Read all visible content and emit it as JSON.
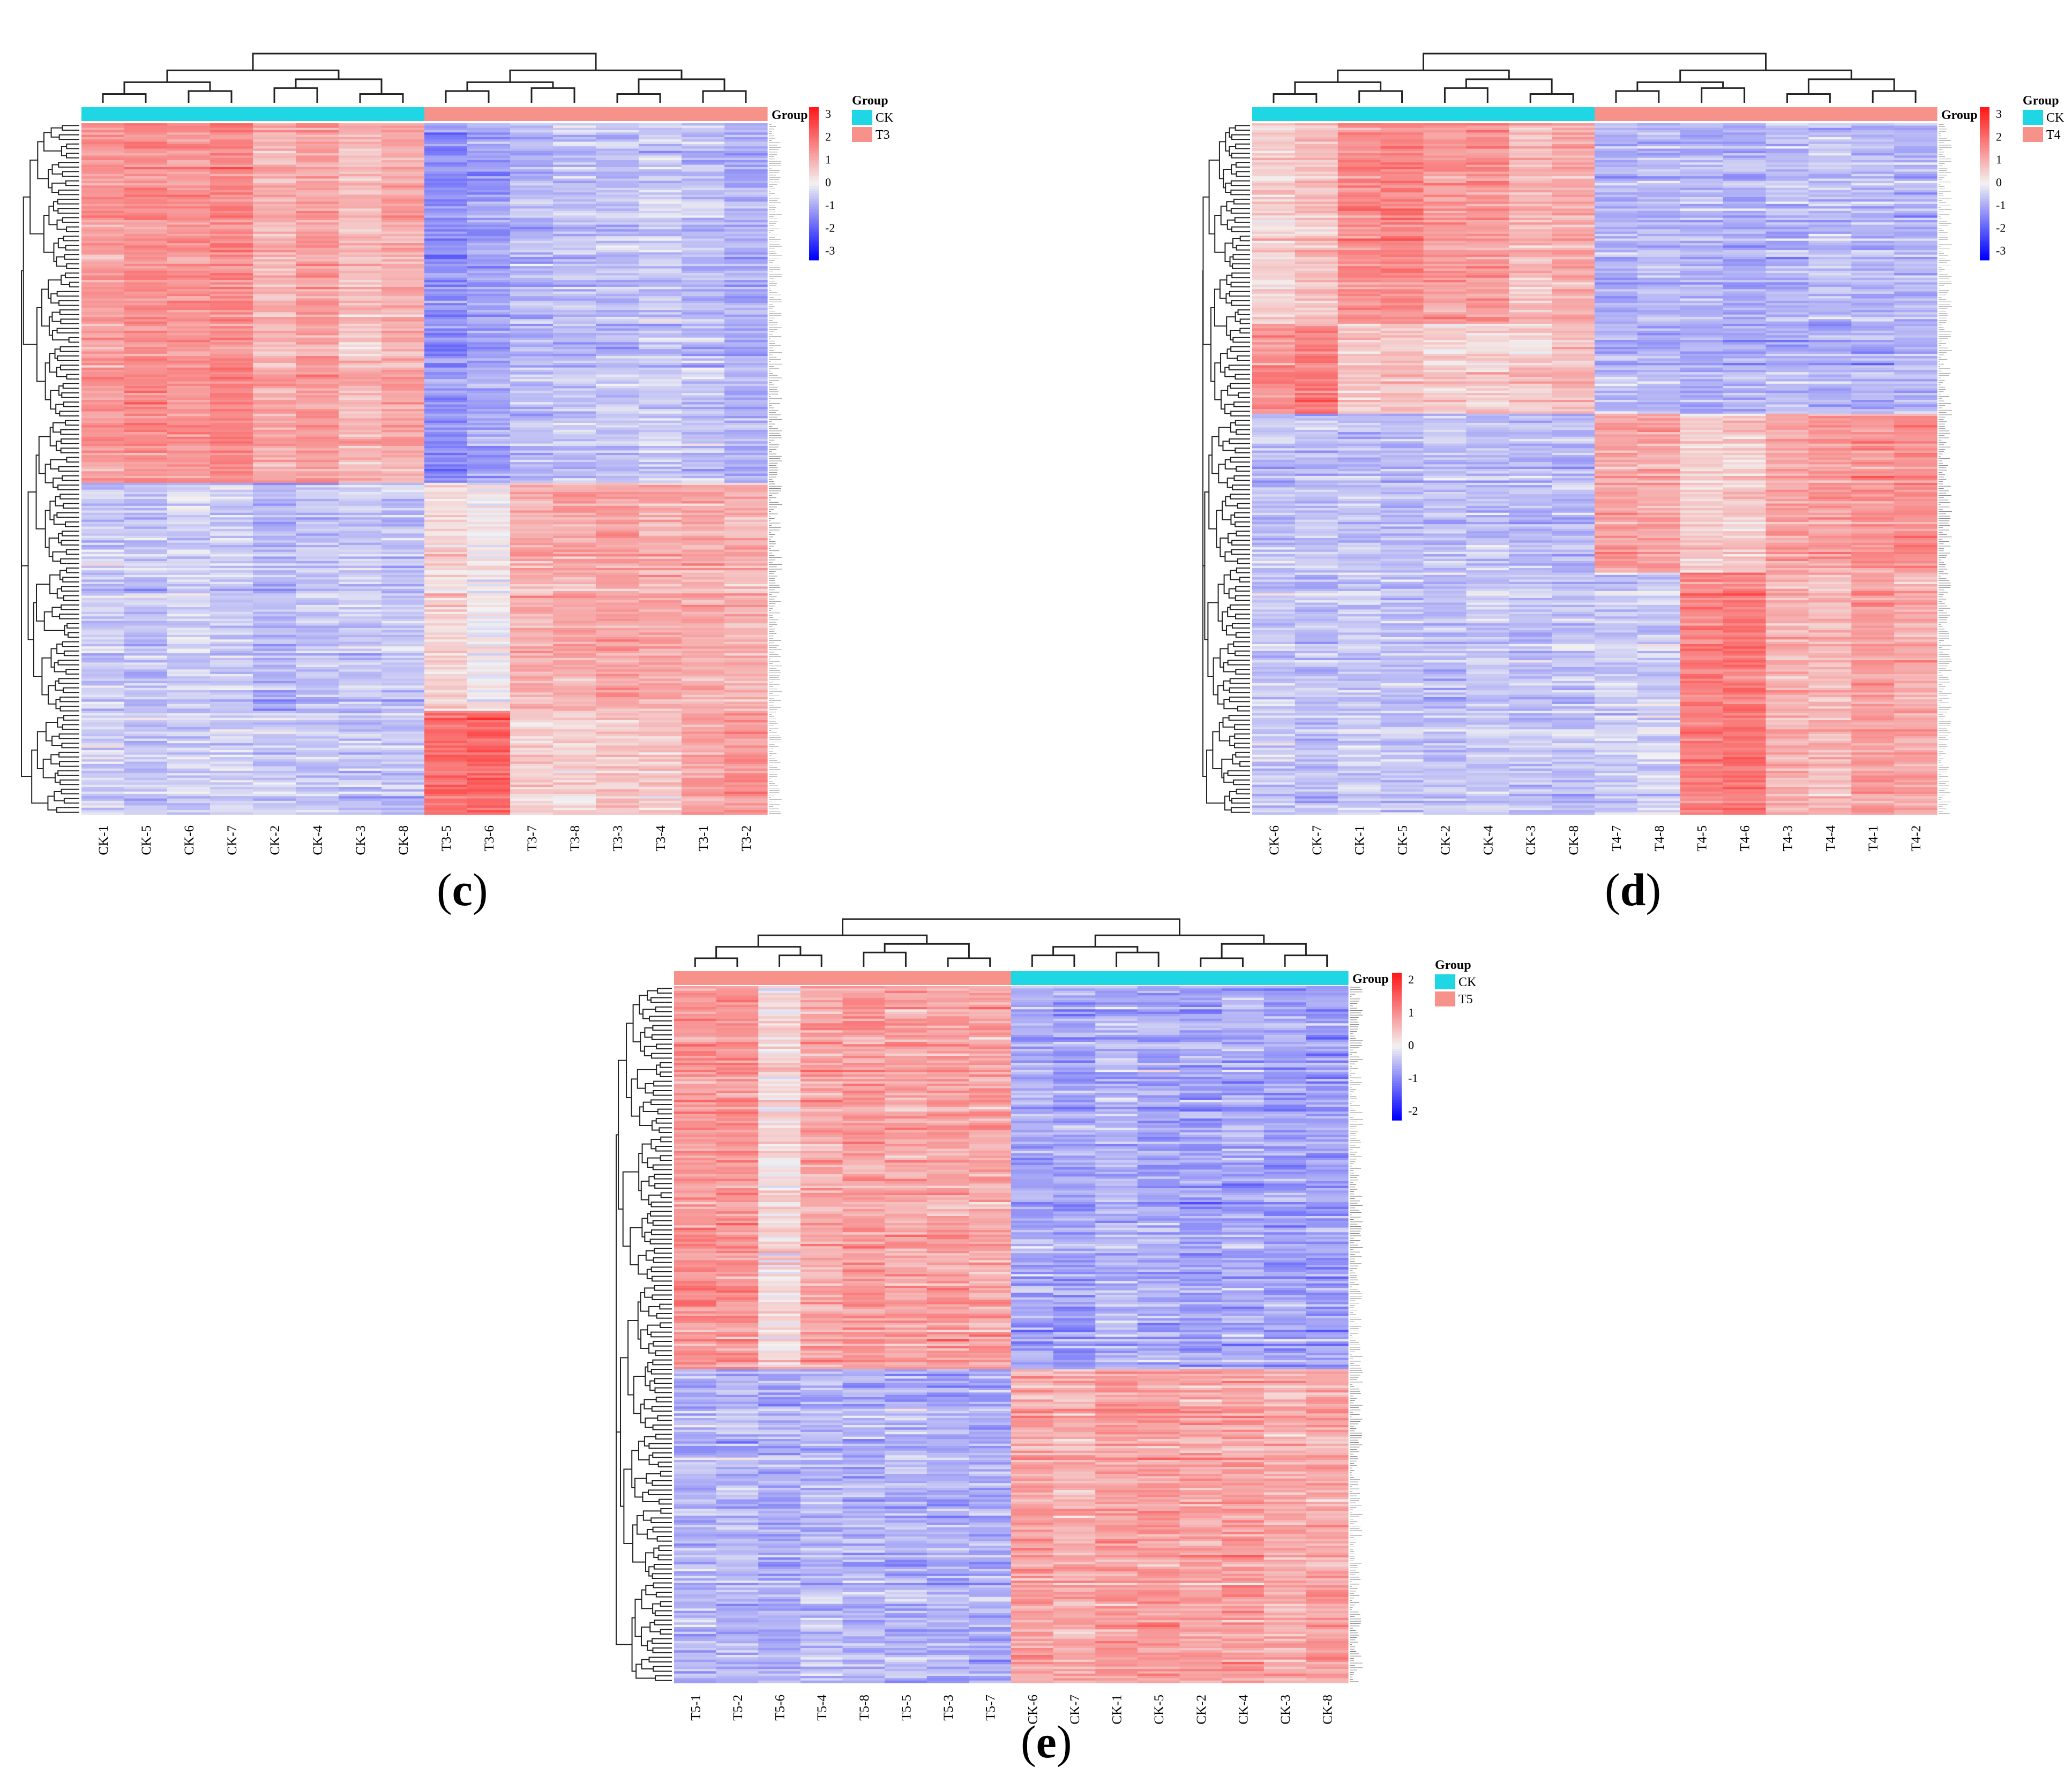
{
  "colors": {
    "ck_group": "#1fd6e4",
    "treatment_group": "#f7928a",
    "high": "#ff1a1a",
    "mid": "#f2f2f2",
    "low": "#0000ff",
    "dendrogram": "#222222"
  },
  "chart_data": [
    {
      "type": "heatmap",
      "panel_label": "c",
      "legend_title": "Group",
      "group_legend": [
        "CK",
        "T3"
      ],
      "group_strip_label": "Group",
      "columns": [
        "CK-1",
        "CK-5",
        "CK-6",
        "CK-7",
        "CK-2",
        "CK-4",
        "CK-3",
        "CK-8",
        "T3-5",
        "T3-6",
        "T3-7",
        "T3-8",
        "T3-3",
        "T3-4",
        "T3-1",
        "T3-2"
      ],
      "column_groups": [
        "CK",
        "CK",
        "CK",
        "CK",
        "CK",
        "CK",
        "CK",
        "CK",
        "T3",
        "T3",
        "T3",
        "T3",
        "T3",
        "T3",
        "T3",
        "T3"
      ],
      "scale_ticks": [
        "3",
        "2",
        "1",
        "0",
        "-1",
        "-2",
        "-3"
      ],
      "scale_range": [
        -3,
        3
      ],
      "row_count": 300,
      "row_blocks": [
        {
          "fraction": 0.52,
          "mean_by_column": [
            1.2,
            1.4,
            1.3,
            1.5,
            0.9,
            1.2,
            0.8,
            1.0,
            -1.2,
            -1.0,
            -0.7,
            -0.6,
            -0.6,
            -0.5,
            -0.6,
            -0.8
          ]
        },
        {
          "fraction": 0.33,
          "mean_by_column": [
            -0.5,
            -0.6,
            -0.4,
            -0.5,
            -0.7,
            -0.6,
            -0.5,
            -0.6,
            0.4,
            0.1,
            0.9,
            1.0,
            1.1,
            1.0,
            1.0,
            0.9
          ]
        },
        {
          "fraction": 0.15,
          "mean_by_column": [
            -0.4,
            -0.5,
            -0.5,
            -0.4,
            -0.5,
            -0.5,
            -0.6,
            -0.6,
            1.8,
            1.9,
            0.5,
            0.4,
            0.6,
            0.6,
            1.1,
            1.2
          ]
        }
      ]
    },
    {
      "type": "heatmap",
      "panel_label": "d",
      "legend_title": "Group",
      "group_legend": [
        "CK",
        "T4"
      ],
      "group_strip_label": "Group",
      "columns": [
        "CK-6",
        "CK-7",
        "CK-1",
        "CK-5",
        "CK-2",
        "CK-4",
        "CK-3",
        "CK-8",
        "T4-7",
        "T4-8",
        "T4-5",
        "T4-6",
        "T4-3",
        "T4-4",
        "T4-1",
        "T4-2"
      ],
      "column_groups": [
        "CK",
        "CK",
        "CK",
        "CK",
        "CK",
        "CK",
        "CK",
        "CK",
        "T4",
        "T4",
        "T4",
        "T4",
        "T4",
        "T4",
        "T4",
        "T4"
      ],
      "scale_ticks": [
        "3",
        "2",
        "1",
        "0",
        "-1",
        "-2",
        "-3"
      ],
      "scale_range": [
        -3,
        3
      ],
      "row_count": 300,
      "row_blocks": [
        {
          "fraction": 0.29,
          "mean_by_column": [
            0.5,
            0.7,
            1.4,
            1.5,
            1.2,
            1.3,
            0.8,
            1.0,
            -0.8,
            -0.7,
            -0.7,
            -0.8,
            -0.7,
            -0.6,
            -0.7,
            -0.7
          ]
        },
        {
          "fraction": 0.13,
          "mean_by_column": [
            1.4,
            1.6,
            0.6,
            0.7,
            0.5,
            0.5,
            0.6,
            0.8,
            -0.7,
            -0.8,
            -0.9,
            -0.8,
            -0.7,
            -0.8,
            -0.8,
            -0.7
          ]
        },
        {
          "fraction": 0.23,
          "mean_by_column": [
            -0.6,
            -0.6,
            -0.6,
            -0.7,
            -0.6,
            -0.6,
            -0.7,
            -0.7,
            1.2,
            1.1,
            0.5,
            0.5,
            1.1,
            1.2,
            1.3,
            1.4
          ]
        },
        {
          "fraction": 0.35,
          "mean_by_column": [
            -0.5,
            -0.6,
            -0.5,
            -0.6,
            -0.6,
            -0.5,
            -0.6,
            -0.6,
            -0.5,
            -0.4,
            1.6,
            1.7,
            0.9,
            0.8,
            1.2,
            1.0
          ]
        }
      ]
    },
    {
      "type": "heatmap",
      "panel_label": "e",
      "legend_title": "Group",
      "group_legend": [
        "CK",
        "T5"
      ],
      "group_strip_label": "Group",
      "columns": [
        "T5-1",
        "T5-2",
        "T5-6",
        "T5-4",
        "T5-8",
        "T5-5",
        "T5-3",
        "T5-7",
        "CK-6",
        "CK-7",
        "CK-1",
        "CK-5",
        "CK-2",
        "CK-4",
        "CK-3",
        "CK-8"
      ],
      "column_groups": [
        "T5",
        "T5",
        "T5",
        "T5",
        "T5",
        "T5",
        "T5",
        "T5",
        "CK",
        "CK",
        "CK",
        "CK",
        "CK",
        "CK",
        "CK",
        "CK"
      ],
      "scale_ticks": [
        "2",
        "1",
        "0",
        "-1",
        "-2"
      ],
      "scale_range": [
        -2.5,
        2.5
      ],
      "row_count": 300,
      "row_blocks": [
        {
          "fraction": 0.55,
          "mean_by_column": [
            1.1,
            1.1,
            0.3,
            0.9,
            1.0,
            0.9,
            1.0,
            0.9,
            -0.7,
            -0.8,
            -0.6,
            -0.7,
            -0.8,
            -0.7,
            -0.8,
            -0.8
          ]
        },
        {
          "fraction": 0.45,
          "mean_by_column": [
            -0.6,
            -0.6,
            -0.7,
            -0.6,
            -0.6,
            -0.6,
            -0.7,
            -0.7,
            0.9,
            0.8,
            1.0,
            1.0,
            0.9,
            1.0,
            0.8,
            0.9
          ]
        }
      ]
    }
  ]
}
